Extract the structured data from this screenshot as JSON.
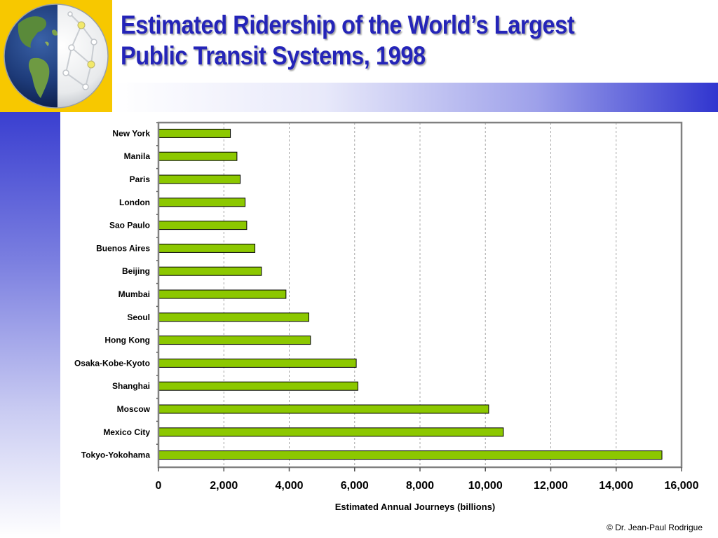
{
  "slide": {
    "title": "Estimated Ridership of the World’s Largest Public Transit Systems, 1998",
    "credit": "© Dr. Jean-Paul Rodrigue"
  },
  "colors": {
    "title": "#2424b8",
    "bar_fill": "#8cc800",
    "bar_stroke": "#000000",
    "plot_border": "#808080",
    "logo_background": "#f7c800"
  },
  "icons": {
    "logo": "globe-network-icon"
  },
  "chart_data": {
    "type": "bar",
    "orientation": "horizontal",
    "categories": [
      "New York",
      "Manila",
      "Paris",
      "London",
      "Sao Paulo",
      "Buenos Aires",
      "Beijing",
      "Mumbai",
      "Seoul",
      "Hong Kong",
      "Osaka-Kobe-Kyoto",
      "Shanghai",
      "Moscow",
      "Mexico City",
      "Tokyo-Yokohama"
    ],
    "values": [
      2200,
      2400,
      2500,
      2650,
      2700,
      2950,
      3150,
      3900,
      4600,
      4650,
      6050,
      6100,
      10100,
      10550,
      15400
    ],
    "xlabel": "Estimated Annual Journeys (billions)",
    "ylabel": "",
    "xlim": [
      0,
      16000
    ],
    "xticks": [
      0,
      2000,
      4000,
      6000,
      8000,
      10000,
      12000,
      14000,
      16000
    ],
    "xtick_labels": [
      "0",
      "2,000",
      "4,000",
      "6,000",
      "8,000",
      "10,000",
      "12,000",
      "14,000",
      "16,000"
    ],
    "grid": "vertical dashed",
    "legend": "none"
  }
}
